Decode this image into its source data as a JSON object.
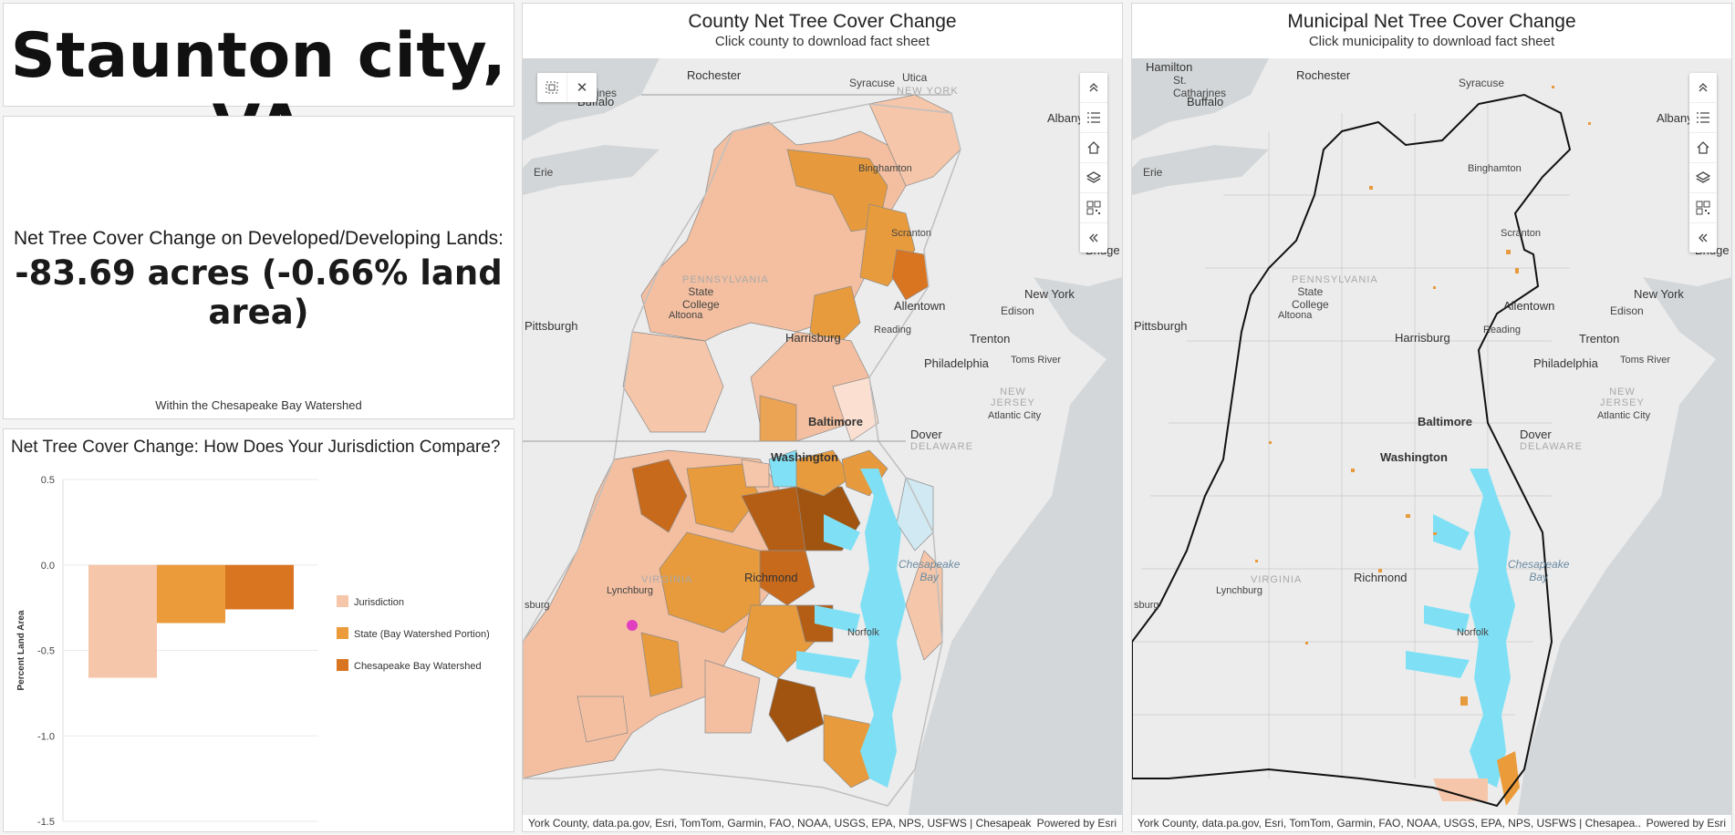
{
  "title": "Staunton city, VA",
  "stat": {
    "label": "Net Tree Cover Change on Developed/Developing Lands:",
    "value": "-83.69 acres (-0.66% land area)",
    "note": "Within the Chesapeake Bay Watershed"
  },
  "chart_title": "Net Tree Cover Change: How Does Your Jurisdiction Compare?",
  "chart_data": {
    "type": "bar",
    "title": "Net Tree Cover Change: How Does Your Jurisdiction Compare?",
    "xlabel": "",
    "ylabel": "Percent Land Area",
    "ylim": [
      -1.5,
      0.5
    ],
    "yticks": [
      "0.5",
      "0.0",
      "-0.5",
      "-1.0",
      "-1.5"
    ],
    "yticks_values": [
      0.5,
      0.0,
      -0.5,
      -1.0,
      -1.5
    ],
    "categories": [
      "Jurisdiction",
      "State (Bay Watershed Portion)",
      "Chesapeake Bay Watershed"
    ],
    "values": [
      -0.66,
      -0.34,
      -0.26
    ],
    "colors": [
      "#f5c6a9",
      "#eb9b3a",
      "#d97421"
    ],
    "legend_position": "right"
  },
  "county_map": {
    "title": "County Net Tree Cover Change",
    "subtitle": "Click county to download fact sheet",
    "attribution": "York County, data.pa.gov, Esri, TomTom, Garmin, FAO, NOAA, USGS, EPA, NPS, USFWS | Chesapeak...",
    "powered": "Powered by Esri"
  },
  "muni_map": {
    "title": "Municipal Net Tree Cover Change",
    "subtitle": "Click municipality to download fact sheet",
    "attribution": "York County, data.pa.gov, Esri, TomTom, Garmin, FAO, NOAA, USGS, EPA, NPS, USFWS | Chesapea...",
    "powered": "Powered by Esri"
  },
  "places": {
    "hamilton": "Hamilton",
    "st_catharines_1": "St.",
    "st_catharines_2": "Catharines",
    "rochester": "Rochester",
    "syracuse": "Syracuse",
    "utica": "Utica",
    "buffalo": "Buffalo",
    "albany": "Albany",
    "erie": "Erie",
    "binghamton": "Binghamton",
    "scranton": "Scranton",
    "bridge": "Bridge",
    "state_college_1": "State",
    "state_college_2": "College",
    "pennsylvania": "PENNSYLVANIA",
    "new_york_state": "NEW YORK",
    "allentown": "Allentown",
    "edison": "Edison",
    "new_york": "New York",
    "pittsburgh": "Pittsburgh",
    "altoona": "Altoona",
    "reading": "Reading",
    "harrisburg": "Harrisburg",
    "trenton": "Trenton",
    "philadelphia": "Philadelphia",
    "toms_river": "Toms River",
    "new_jersey_1": "NEW",
    "new_jersey_2": "JERSEY",
    "atlantic_city": "Atlantic City",
    "baltimore": "Baltimore",
    "dover": "Dover",
    "delaware": "DELAWARE",
    "washington": "Washington",
    "chesapeake_bay_1": "Chesapeake",
    "chesapeake_bay_2": "Bay",
    "richmond": "Richmond",
    "virginia": "VIRGINIA",
    "lynchburg": "Lynchburg",
    "norfolk": "Norfolk",
    "sburg": "sburg"
  },
  "icons": [
    "chevrons-up-icon",
    "list-icon",
    "home-icon",
    "layers-icon",
    "qr-grid-icon",
    "chevrons-left-icon",
    "select-box-icon",
    "close-icon"
  ]
}
